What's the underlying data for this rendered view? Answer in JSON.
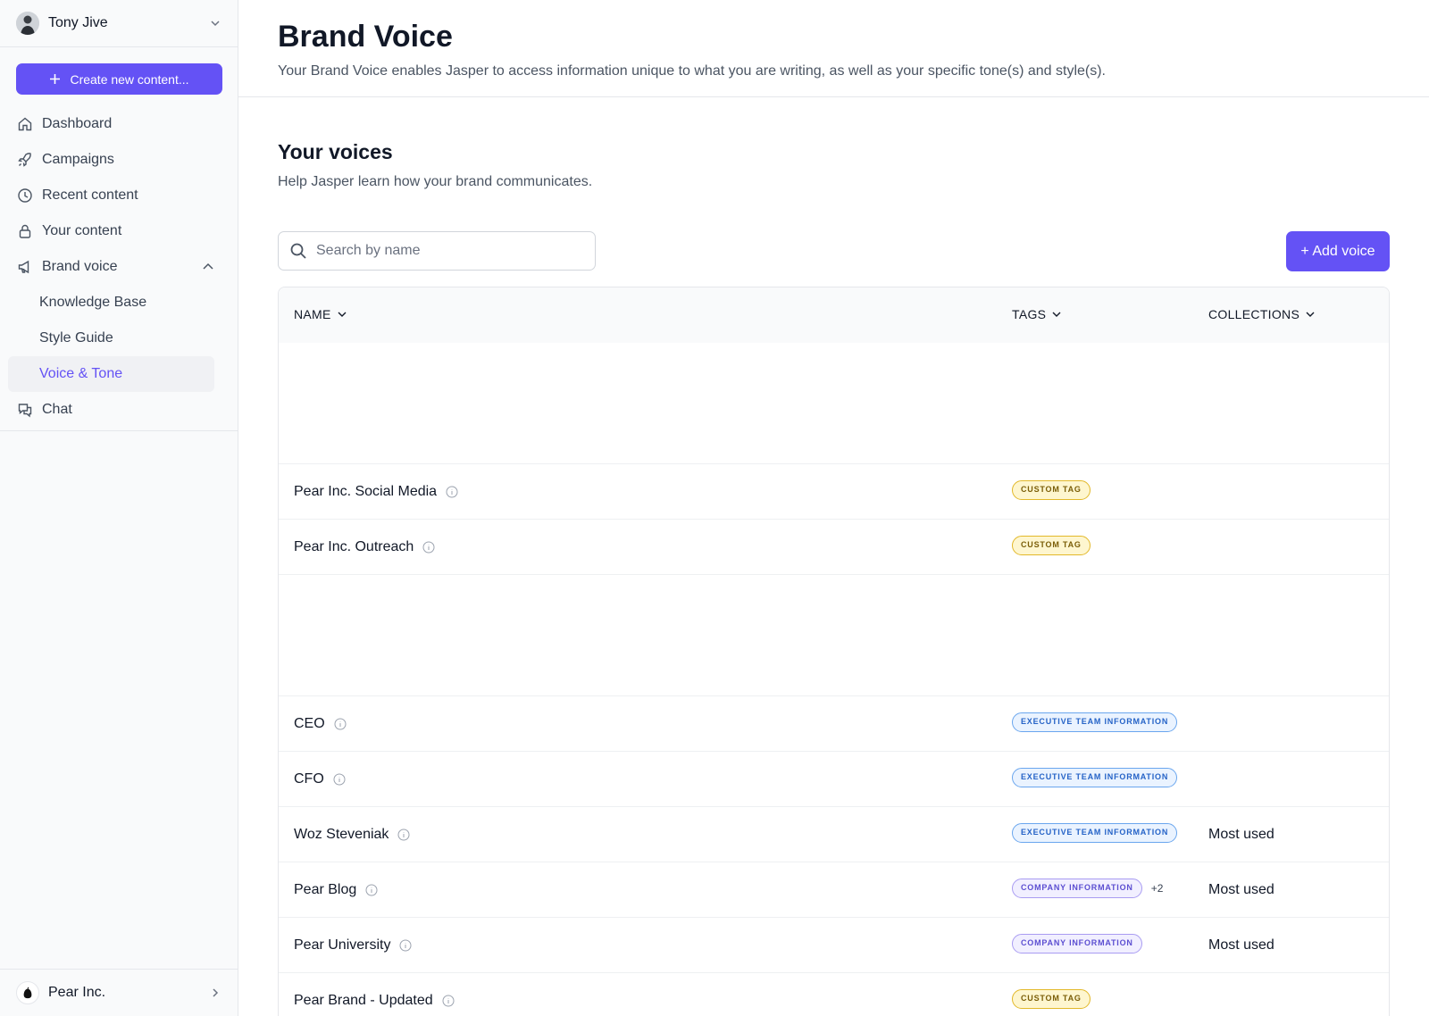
{
  "sidebar": {
    "user_name": "Tony Jive",
    "create_label": "Create new content...",
    "nav": {
      "dashboard": "Dashboard",
      "campaigns": "Campaigns",
      "recent": "Recent content",
      "your_content": "Your content",
      "brand_voice": "Brand voice",
      "knowledge_base": "Knowledge Base",
      "style_guide": "Style Guide",
      "voice_tone": "Voice & Tone",
      "chat": "Chat"
    },
    "org_name": "Pear Inc."
  },
  "header": {
    "title": "Brand Voice",
    "subtitle": "Your Brand Voice enables Jasper to access information unique to what you are writing, as well as your specific tone(s) and style(s)."
  },
  "section": {
    "title": "Your voices",
    "subtitle": "Help Jasper learn how your brand communicates."
  },
  "search": {
    "placeholder": "Search by name"
  },
  "add_voice_label": "+ Add voice",
  "table": {
    "columns": {
      "name": "NAME",
      "tags": "TAGS",
      "collections": "COLLECTIONS"
    },
    "rows": [
      {
        "name": "Pear Inc. Social Media",
        "tag": "CUSTOM TAG",
        "extra": "",
        "collection": ""
      },
      {
        "name": "Pear Inc. Outreach",
        "tag": "CUSTOM TAG",
        "extra": "",
        "collection": ""
      },
      {
        "name": "CEO",
        "tag": "EXECUTIVE TEAM INFORMATION",
        "extra": "",
        "collection": ""
      },
      {
        "name": "CFO",
        "tag": "EXECUTIVE TEAM INFORMATION",
        "extra": "",
        "collection": ""
      },
      {
        "name": "Woz Steveniak",
        "tag": "EXECUTIVE TEAM INFORMATION",
        "extra": "",
        "collection": "Most used"
      },
      {
        "name": "Pear Blog",
        "tag": "COMPANY INFORMATION",
        "extra": "+2",
        "collection": "Most used"
      },
      {
        "name": "Pear University",
        "tag": "COMPANY INFORMATION",
        "extra": "",
        "collection": "Most used"
      },
      {
        "name": "Pear Brand - Updated",
        "tag": "CUSTOM TAG",
        "extra": "",
        "collection": ""
      }
    ]
  },
  "colors": {
    "accent": "#6452f5",
    "custom_tag": "#fef6cf",
    "exec_tag": "#eaf3ff",
    "company_tag": "#f1efff"
  }
}
